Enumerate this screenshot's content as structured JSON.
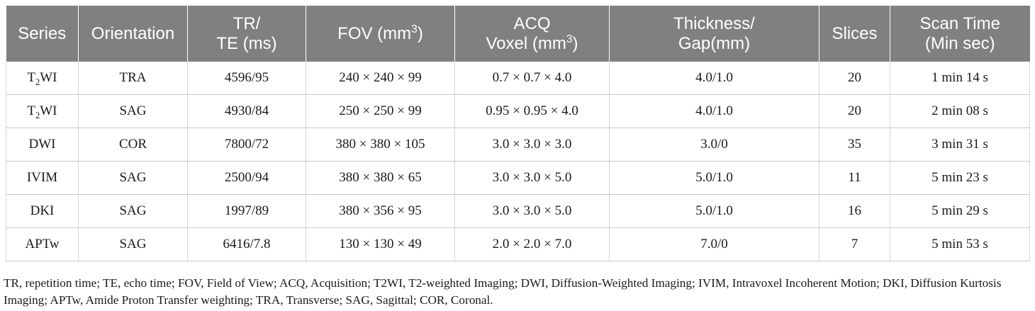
{
  "table": {
    "headers": {
      "series": "Series",
      "orientation": "Orientation",
      "tr_line1": "TR/",
      "tr_line2": "TE (ms)",
      "fov_main": "FOV (mm",
      "fov_sup": "3",
      "fov_close": ")",
      "acq_line1": "ACQ",
      "acq_main": "Voxel (mm",
      "acq_sup": "3",
      "acq_close": ")",
      "thick_line1": "Thickness/",
      "thick_line2": "Gap(mm)",
      "slices": "Slices",
      "scan_line1": "Scan Time",
      "scan_line2": "(Min sec)"
    },
    "rows": [
      {
        "series_pre": "T",
        "series_sub": "2",
        "series_post": "WI",
        "orientation": "TRA",
        "tr_te": "4596/95",
        "fov": "240 × 240 × 99",
        "voxel": "0.7 × 0.7 × 4.0",
        "thickness_gap": "4.0/1.0",
        "slices": "20",
        "scan_time": "1 min 14 s"
      },
      {
        "series_pre": "T",
        "series_sub": "2",
        "series_post": "WI",
        "orientation": "SAG",
        "tr_te": "4930/84",
        "fov": "250 × 250 × 99",
        "voxel": "0.95 × 0.95 × 4.0",
        "thickness_gap": "4.0/1.0",
        "slices": "20",
        "scan_time": "2 min 08 s"
      },
      {
        "series": "DWI",
        "orientation": "COR",
        "tr_te": "7800/72",
        "fov": "380 × 380 × 105",
        "voxel": "3.0 × 3.0 × 3.0",
        "thickness_gap": "3.0/0",
        "slices": "35",
        "scan_time": "3 min 31 s"
      },
      {
        "series": "IVIM",
        "orientation": "SAG",
        "tr_te": "2500/94",
        "fov": "380 × 380 × 65",
        "voxel": "3.0 × 3.0 × 5.0",
        "thickness_gap": "5.0/1.0",
        "slices": "11",
        "scan_time": "5 min 23 s"
      },
      {
        "series": "DKI",
        "orientation": "SAG",
        "tr_te": "1997/89",
        "fov": "380 × 356 × 95",
        "voxel": "3.0 × 3.0 × 5.0",
        "thickness_gap": "5.0/1.0",
        "slices": "16",
        "scan_time": "5 min 29 s"
      },
      {
        "series": "APTw",
        "orientation": "SAG",
        "tr_te": "6416/7.8",
        "fov": "130 × 130 × 49",
        "voxel": "2.0 × 2.0 × 7.0",
        "thickness_gap": "7.0/0",
        "slices": "7",
        "scan_time": "5 min 53 s"
      }
    ]
  },
  "footnote": "TR, repetition time; TE, echo time; FOV, Field of View; ACQ, Acquisition; T2WI, T2-weighted Imaging; DWI, Diffusion-Weighted Imaging; IVIM, Intravoxel Incoherent Motion; DKI, Diffusion Kurtosis Imaging; APTw, Amide Proton Transfer weighting; TRA, Transverse; SAG, Sagittal; COR, Coronal.",
  "colors": {
    "header_bg": "#808080",
    "header_text": "#ffffff",
    "rule": "#c8c8c8"
  }
}
